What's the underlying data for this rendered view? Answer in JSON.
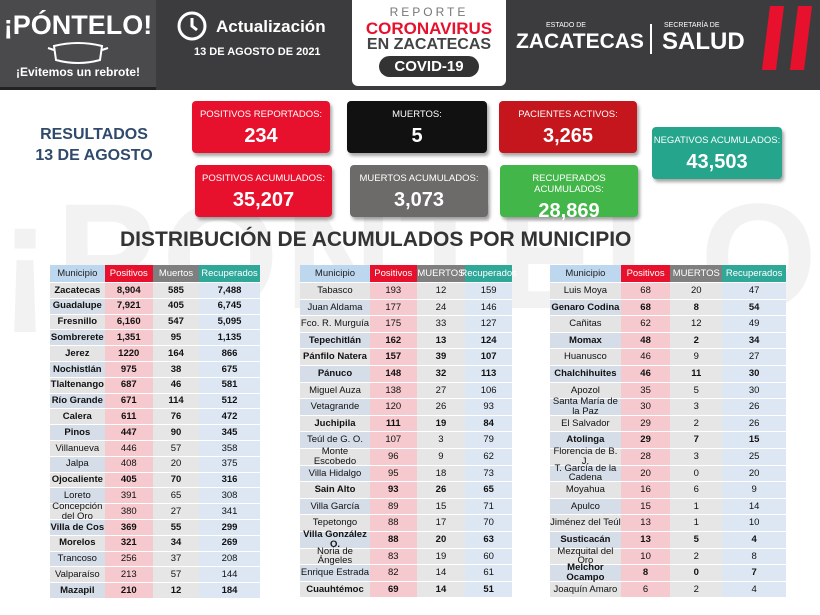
{
  "header": {
    "campaign": "¡PÓNTELO!",
    "campaign_sub": "¡Evitemos un rebrote!",
    "update_label": "Actualización",
    "update_date": "13 DE AGOSTO DE 2021",
    "report": {
      "line1": "REPORTE",
      "line2": "CORONAVIRUS",
      "line3": "EN ZACATECAS",
      "line4": "COVID-19"
    },
    "state_label": "ESTADO DE",
    "state": "ZACATECAS",
    "ministry_label": "SECRETARÍA DE",
    "ministry": "SALUD"
  },
  "results": {
    "title": "RESULTADOS",
    "date": "13 DE AGOSTO"
  },
  "cards": [
    {
      "label": "POSITIVOS REPORTADOS:",
      "value": "234"
    },
    {
      "label": "MUERTOS:",
      "value": "5"
    },
    {
      "label": "PACIENTES ACTIVOS:",
      "value": "3,265"
    },
    {
      "label": "NEGATIVOS ACUMULADOS:",
      "value": "43,503"
    },
    {
      "label": "POSITIVOS ACUMULADOS:",
      "value": "35,207"
    },
    {
      "label": "MUERTOS ACUMULADOS:",
      "value": "3,073"
    },
    {
      "label": "RECUPERADOS ACUMULADOS:",
      "value": "28,869"
    }
  ],
  "section_title": "DISTRIBUCIÓN DE ACUMULADOS POR MUNICIPIO",
  "tables": [
    {
      "columns": [
        "Municipio",
        "Positivos",
        "Muertos",
        "Recuperados"
      ],
      "rows": [
        [
          "Zacatecas",
          "8,904",
          "585",
          "7,488"
        ],
        [
          "Guadalupe",
          "7,921",
          "405",
          "6,745"
        ],
        [
          "Fresnillo",
          "6,160",
          "547",
          "5,095"
        ],
        [
          "Sombrerete",
          "1,351",
          "95",
          "1,135"
        ],
        [
          "Jerez",
          "1220",
          "164",
          "866"
        ],
        [
          "Nochistlán",
          "975",
          "38",
          "675"
        ],
        [
          "Tlaltenango",
          "687",
          "46",
          "581"
        ],
        [
          "Río Grande",
          "671",
          "114",
          "512"
        ],
        [
          "Calera",
          "611",
          "76",
          "472"
        ],
        [
          "Pinos",
          "447",
          "90",
          "345"
        ],
        [
          "Villanueva",
          "446",
          "57",
          "358"
        ],
        [
          "Jalpa",
          "408",
          "20",
          "375"
        ],
        [
          "Ojocaliente",
          "405",
          "70",
          "316"
        ],
        [
          "Loreto",
          "391",
          "65",
          "308"
        ],
        [
          "Concepción del Oro",
          "380",
          "27",
          "341"
        ],
        [
          "Villa de Cos",
          "369",
          "55",
          "299"
        ],
        [
          "Morelos",
          "321",
          "34",
          "269"
        ],
        [
          "Trancoso",
          "256",
          "37",
          "208"
        ],
        [
          "Valparaíso",
          "213",
          "57",
          "144"
        ],
        [
          "Mazapil",
          "210",
          "12",
          "184"
        ]
      ]
    },
    {
      "columns": [
        "Municipio",
        "Positivos",
        "MUERTOS",
        "Recuperados"
      ],
      "rows": [
        [
          "Tabasco",
          "193",
          "12",
          "159"
        ],
        [
          "Juan Aldama",
          "177",
          "24",
          "146"
        ],
        [
          "Fco. R. Murguía",
          "175",
          "33",
          "127"
        ],
        [
          "Tepechitlán",
          "162",
          "13",
          "124"
        ],
        [
          "Pánfilo Natera",
          "157",
          "39",
          "107"
        ],
        [
          "Pánuco",
          "148",
          "32",
          "113"
        ],
        [
          "Miguel Auza",
          "138",
          "27",
          "106"
        ],
        [
          "Vetagrande",
          "120",
          "26",
          "93"
        ],
        [
          "Juchipila",
          "111",
          "19",
          "84"
        ],
        [
          "Teúl de G. O.",
          "107",
          "3",
          "79"
        ],
        [
          "Monte Escobedo",
          "96",
          "9",
          "62"
        ],
        [
          "Villa Hidalgo",
          "95",
          "18",
          "73"
        ],
        [
          "Sain Alto",
          "93",
          "26",
          "65"
        ],
        [
          "Villa García",
          "89",
          "15",
          "71"
        ],
        [
          "Tepetongo",
          "88",
          "17",
          "70"
        ],
        [
          "Villa González O.",
          "88",
          "20",
          "63"
        ],
        [
          "Noria de Ángeles",
          "83",
          "19",
          "60"
        ],
        [
          "Enrique Estrada",
          "82",
          "14",
          "61"
        ],
        [
          "Cuauhtémoc",
          "69",
          "14",
          "51"
        ]
      ]
    },
    {
      "columns": [
        "Municipio",
        "Positivos",
        "MUERTOS",
        "Recuperados"
      ],
      "rows": [
        [
          "Luis Moya",
          "68",
          "20",
          "47"
        ],
        [
          "Genaro Codina",
          "68",
          "8",
          "54"
        ],
        [
          "Cañitas",
          "62",
          "12",
          "49"
        ],
        [
          "Momax",
          "48",
          "2",
          "34"
        ],
        [
          "Huanusco",
          "46",
          "9",
          "27"
        ],
        [
          "Chalchihuites",
          "46",
          "11",
          "30"
        ],
        [
          "Apozol",
          "35",
          "5",
          "30"
        ],
        [
          "Santa María de la Paz",
          "30",
          "3",
          "26"
        ],
        [
          "El Salvador",
          "29",
          "2",
          "26"
        ],
        [
          "Atolinga",
          "29",
          "7",
          "15"
        ],
        [
          "Florencia de B. J.",
          "28",
          "3",
          "25"
        ],
        [
          "T. García de la Cadena",
          "20",
          "0",
          "20"
        ],
        [
          "Moyahua",
          "16",
          "6",
          "9"
        ],
        [
          "Apulco",
          "15",
          "1",
          "14"
        ],
        [
          "Jiménez del Teúl",
          "13",
          "1",
          "10"
        ],
        [
          "Susticacán",
          "13",
          "5",
          "4"
        ],
        [
          "Mezquital del Oro",
          "10",
          "2",
          "8"
        ],
        [
          "Melchor Ocampo",
          "8",
          "0",
          "7"
        ],
        [
          "Joaquín Amaro",
          "6",
          "2",
          "4"
        ]
      ]
    }
  ]
}
